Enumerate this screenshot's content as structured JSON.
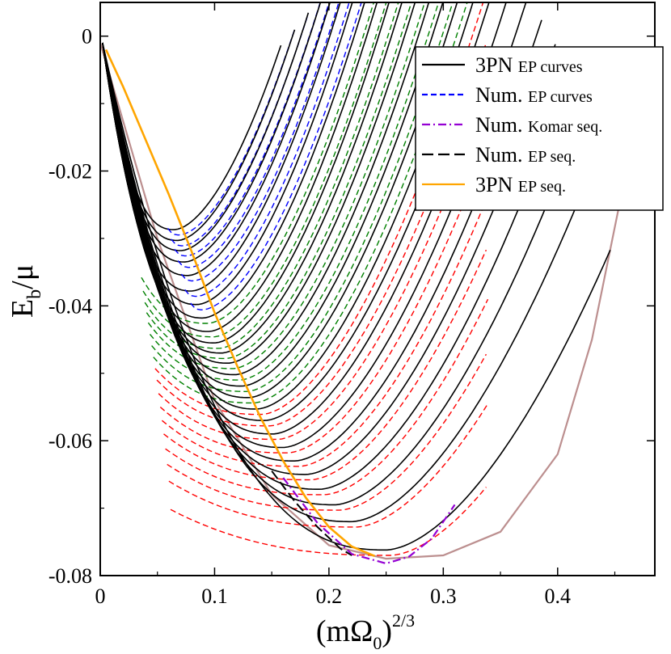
{
  "chart_data": {
    "type": "line",
    "xlabel": {
      "base": "(mΩ",
      "sub": "0",
      "close": ")",
      "sup": "2/3"
    },
    "ylabel": {
      "base": "E",
      "sub": "b",
      "rest": "/μ"
    },
    "xlim": [
      0,
      0.485
    ],
    "ylim": [
      -0.08,
      0.005
    ],
    "x_ticks": [
      {
        "value": 0,
        "label": "0"
      },
      {
        "value": 0.1,
        "label": "0.1"
      },
      {
        "value": 0.2,
        "label": "0.2"
      },
      {
        "value": 0.3,
        "label": "0.3"
      },
      {
        "value": 0.4,
        "label": "0.4"
      }
    ],
    "y_ticks": [
      {
        "value": 0,
        "label": "0"
      },
      {
        "value": -0.02,
        "label": "-0.02"
      },
      {
        "value": -0.04,
        "label": "-0.04"
      },
      {
        "value": -0.06,
        "label": "-0.06"
      },
      {
        "value": -0.08,
        "label": "-0.08"
      }
    ],
    "legend": {
      "position": "top-right",
      "entries": [
        {
          "big": "3PN",
          "small": "EP curves",
          "color": "#000000",
          "dash": "solid"
        },
        {
          "big": "Num.",
          "small": "EP curves",
          "color": "#0000ff",
          "dash": "dashed"
        },
        {
          "big": "Num.",
          "small": "Komar seq.",
          "color": "#9400d3",
          "dash": "dashdot"
        },
        {
          "big": "Num.",
          "small": "EP seq.",
          "color": "#000000",
          "dash": "longdash"
        },
        {
          "big": "3PN",
          "small": "EP seq.",
          "color": "#ffa500",
          "dash": "solid"
        }
      ]
    },
    "colors": {
      "pn_curves": "#000000",
      "num_blue": "#0000ff",
      "num_green": "#008000",
      "num_red": "#ff0000",
      "komar": "#9400d3",
      "ep_seq": "#000000",
      "pn_seq": "#ffa500",
      "envelope": "#bc8f8f"
    },
    "series": [
      {
        "name": "3PN EP curves",
        "description": "family of curves starting at origin, minima along the EP sequence",
        "minima": [
          [
            0.065,
            -0.0287
          ],
          [
            0.068,
            -0.0303
          ],
          [
            0.071,
            -0.0318
          ],
          [
            0.074,
            -0.0335
          ],
          [
            0.077,
            -0.0355
          ],
          [
            0.08,
            -0.0378
          ],
          [
            0.085,
            -0.0398
          ],
          [
            0.09,
            -0.0418
          ],
          [
            0.095,
            -0.0438
          ],
          [
            0.1,
            -0.0455
          ],
          [
            0.106,
            -0.047
          ],
          [
            0.112,
            -0.0485
          ],
          [
            0.118,
            -0.0502
          ],
          [
            0.124,
            -0.0519
          ],
          [
            0.13,
            -0.0536
          ],
          [
            0.137,
            -0.0553
          ],
          [
            0.144,
            -0.057
          ],
          [
            0.151,
            -0.059
          ],
          [
            0.16,
            -0.061
          ],
          [
            0.17,
            -0.063
          ],
          [
            0.18,
            -0.065
          ],
          [
            0.192,
            -0.0672
          ],
          [
            0.205,
            -0.0695
          ],
          [
            0.22,
            -0.072
          ],
          [
            0.25,
            -0.0762
          ]
        ]
      },
      {
        "name": "3PN EP seq.",
        "x": [
          0.005,
          0.02,
          0.04,
          0.06,
          0.08,
          0.1,
          0.12,
          0.14,
          0.16,
          0.18,
          0.2,
          0.22,
          0.24
        ],
        "y": [
          -0.002,
          -0.0075,
          -0.0155,
          -0.0235,
          -0.032,
          -0.041,
          -0.049,
          -0.0565,
          -0.063,
          -0.0685,
          -0.0728,
          -0.0757,
          -0.0771
        ]
      },
      {
        "name": "Num. EP seq.",
        "x": [
          0.15,
          0.17,
          0.19,
          0.21,
          0.22
        ],
        "y": [
          -0.0645,
          -0.069,
          -0.0728,
          -0.076,
          -0.077
        ]
      },
      {
        "name": "Num. Komar seq.",
        "x": [
          0.16,
          0.19,
          0.22,
          0.25,
          0.27,
          0.29,
          0.31
        ],
        "y": [
          -0.0655,
          -0.0722,
          -0.0768,
          -0.0782,
          -0.0772,
          -0.0745,
          -0.0695
        ]
      },
      {
        "name": "Envelope",
        "x": [
          0.0,
          0.05,
          0.1,
          0.15,
          0.2,
          0.25,
          0.3,
          0.35,
          0.4,
          0.43,
          0.46
        ],
        "y": [
          -0.001,
          -0.03,
          -0.054,
          -0.068,
          -0.0755,
          -0.0775,
          -0.077,
          -0.0735,
          -0.062,
          -0.045,
          -0.02
        ]
      }
    ]
  }
}
